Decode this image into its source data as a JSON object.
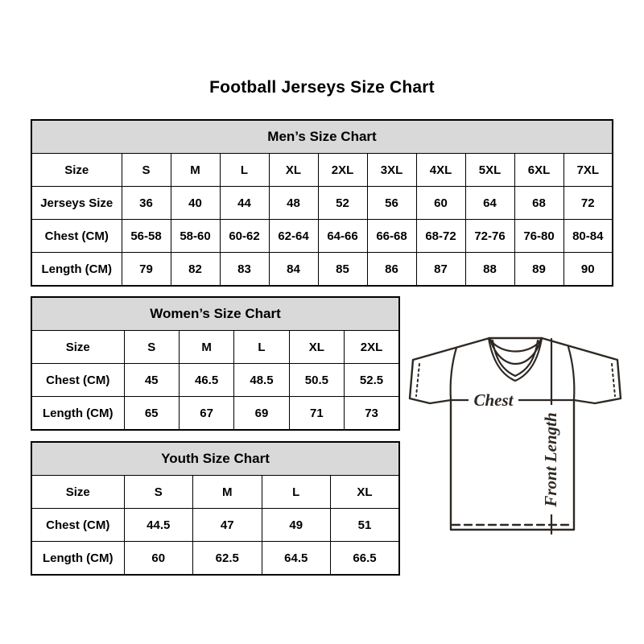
{
  "page": {
    "title": "Football Jerseys Size Chart"
  },
  "colors": {
    "header_bg": "#d9d9d9",
    "table_border": "#000000",
    "text": "#000000",
    "jersey_line": "#2e2823"
  },
  "tables": {
    "mens": {
      "title": "Men’s Size Chart",
      "rows": [
        [
          "Size",
          "S",
          "M",
          "L",
          "XL",
          "2XL",
          "3XL",
          "4XL",
          "5XL",
          "6XL",
          "7XL"
        ],
        [
          "Jerseys Size",
          "36",
          "40",
          "44",
          "48",
          "52",
          "56",
          "60",
          "64",
          "68",
          "72"
        ],
        [
          "Chest (CM)",
          "56-58",
          "58-60",
          "60-62",
          "62-64",
          "64-66",
          "66-68",
          "68-72",
          "72-76",
          "76-80",
          "80-84"
        ],
        [
          "Length (CM)",
          "79",
          "82",
          "83",
          "84",
          "85",
          "86",
          "87",
          "88",
          "89",
          "90"
        ]
      ]
    },
    "womens": {
      "title": "Women’s Size Chart",
      "rows": [
        [
          "Size",
          "S",
          "M",
          "L",
          "XL",
          "2XL"
        ],
        [
          "Chest (CM)",
          "45",
          "46.5",
          "48.5",
          "50.5",
          "52.5"
        ],
        [
          "Length (CM)",
          "65",
          "67",
          "69",
          "71",
          "73"
        ]
      ]
    },
    "youth": {
      "title": "Youth Size Chart",
      "rows": [
        [
          "Size",
          "S",
          "M",
          "L",
          "XL"
        ],
        [
          "Chest (CM)",
          "44.5",
          "47",
          "49",
          "51"
        ],
        [
          "Length (CM)",
          "60",
          "62.5",
          "64.5",
          "66.5"
        ]
      ]
    }
  },
  "jersey_diagram": {
    "chest_label": "Chest",
    "front_length_label": "Front Length"
  }
}
